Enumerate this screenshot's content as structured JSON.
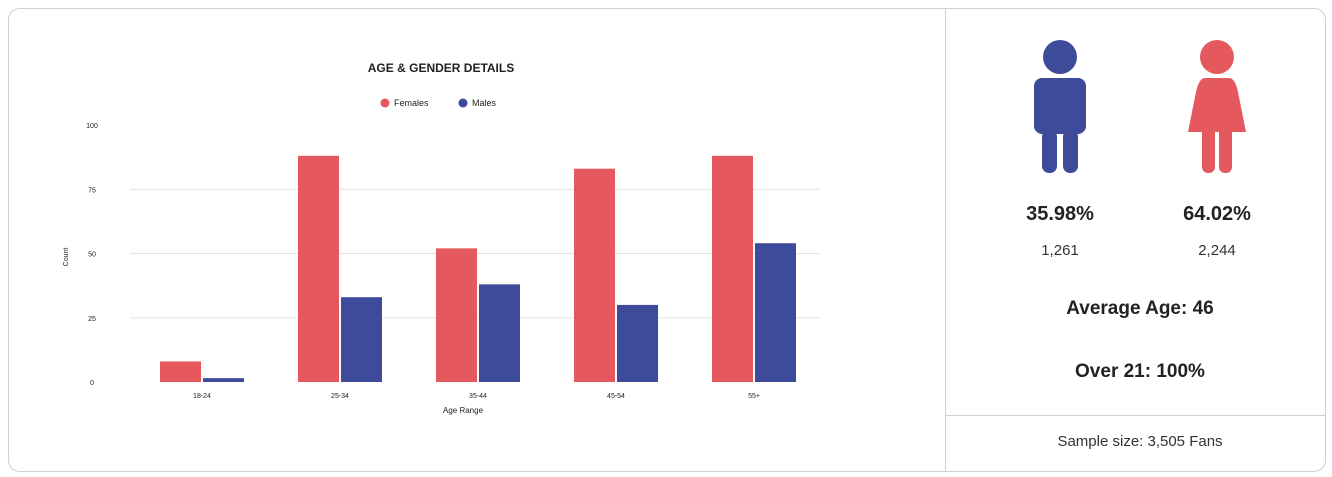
{
  "chart_data": {
    "type": "bar",
    "title": "AGE & GENDER DETAILS",
    "xlabel": "Age Range",
    "ylabel": "Count",
    "ylim": [
      0,
      100
    ],
    "yticks": [
      0,
      25,
      50,
      75,
      100
    ],
    "categories": [
      "18-24",
      "25-34",
      "35-44",
      "45-54",
      "55+"
    ],
    "series": [
      {
        "name": "Females",
        "color": "#e5585d",
        "values": [
          8,
          88,
          52,
          83,
          88
        ]
      },
      {
        "name": "Males",
        "color": "#3e4a9a",
        "values": [
          1.5,
          33,
          38,
          30,
          54
        ]
      }
    ],
    "legend": "top-center",
    "grid": true
  },
  "panel": {
    "male": {
      "icon": "male-person-icon",
      "color": "#3e4a9a",
      "percent": "35.98%",
      "count": "1,261"
    },
    "female": {
      "icon": "female-person-icon",
      "color": "#e5585d",
      "percent": "64.02%",
      "count": "2,244"
    },
    "average_age": "Average Age: 46",
    "over_21": "Over 21: 100%",
    "sample_size": "Sample size: 3,505 Fans"
  }
}
